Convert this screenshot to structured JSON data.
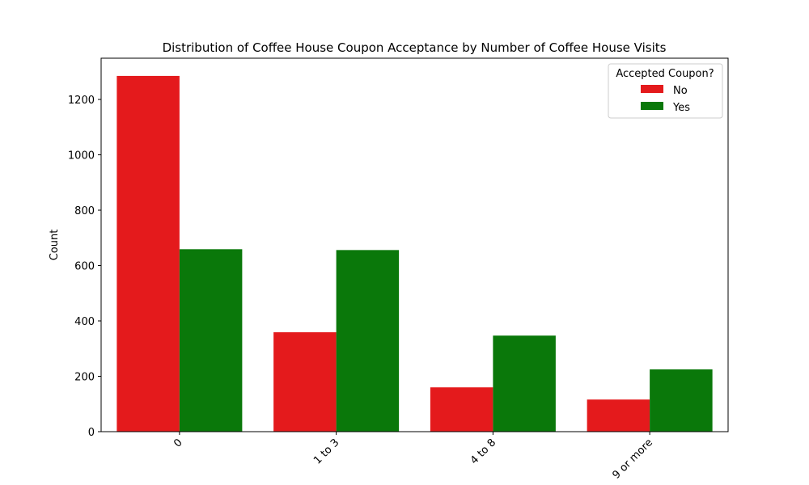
{
  "chart_data": {
    "type": "bar",
    "title": "Distribution of Coffee House Coupon Acceptance by Number of Coffee House Visits",
    "xlabel": "",
    "ylabel": "Count",
    "categories": [
      "0",
      "1 to 3",
      "4 to 8",
      "9 or more"
    ],
    "series": [
      {
        "name": "No",
        "color": "#e41a1c",
        "values": [
          1285,
          359,
          160,
          116
        ]
      },
      {
        "name": "Yes",
        "color": "#0a780a",
        "values": [
          659,
          656,
          347,
          225
        ]
      }
    ],
    "ylim": [
      0,
      1349
    ],
    "yticks": [
      0,
      200,
      400,
      600,
      800,
      1000,
      1200
    ],
    "legend": {
      "title": "Accepted Coupon?",
      "position": "top-right"
    },
    "grid": false,
    "xtick_rotation": 45
  }
}
